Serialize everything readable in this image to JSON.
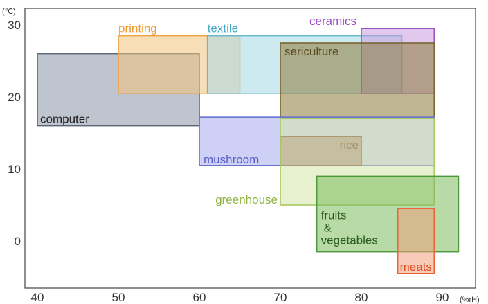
{
  "chart_data": {
    "type": "range-rectangles",
    "x_unit": "(%rH)",
    "y_unit": "(℃)",
    "xlim": [
      35,
      93
    ],
    "ylim": [
      -5,
      32
    ],
    "x_ticks": [
      "40",
      "50",
      "60",
      "70",
      "80",
      "90"
    ],
    "y_ticks": [
      "0",
      "10",
      "20",
      "30"
    ],
    "regions": [
      {
        "label": "computer",
        "x": [
          40,
          60
        ],
        "y": [
          16,
          26
        ],
        "stroke": "#5a6675",
        "fill": "#8a96a8",
        "text": "#222222"
      },
      {
        "label": "printing",
        "x": [
          50,
          65
        ],
        "y": [
          20.5,
          28.5
        ],
        "stroke": "#f2a044",
        "fill": "#f3c27c",
        "text": "#f29a30"
      },
      {
        "label": "textile",
        "x": [
          61,
          85
        ],
        "y": [
          20.5,
          28.5
        ],
        "stroke": "#66b8cc",
        "fill": "#a6d9e6",
        "text": "#46a8c4"
      },
      {
        "label": "ceramics",
        "x": [
          80,
          89
        ],
        "y": [
          20.5,
          29.5
        ],
        "stroke": "#9a50c0",
        "fill": "#c89ce0",
        "text": "#9a4ac0"
      },
      {
        "label": "sericulture",
        "x": [
          70,
          89
        ],
        "y": [
          17,
          27.5
        ],
        "stroke": "#7a6530",
        "fill": "#8c7a38",
        "text": "#5e4a1c"
      },
      {
        "label": "mushroom",
        "x": [
          60,
          89
        ],
        "y": [
          10.5,
          17.2
        ],
        "stroke": "#6870d0",
        "fill": "#a6acec",
        "text": "#5860c8"
      },
      {
        "label": "rice",
        "x": [
          70,
          80
        ],
        "y": [
          10.5,
          14.5
        ],
        "stroke": "#7a3a30",
        "fill": "#9c5a48",
        "text": "#6a2a20"
      },
      {
        "label": "greenhouse",
        "x": [
          70,
          89
        ],
        "y": [
          5,
          17
        ],
        "stroke": "#a8c860",
        "fill": "#d4e6a8",
        "text": "#90b440"
      },
      {
        "label": "fruits & vegetables",
        "x": [
          74.5,
          92
        ],
        "y": [
          -1.5,
          9
        ],
        "stroke": "#4a9a3c",
        "fill": "#7cbc5c",
        "text": "#2a5a1c"
      },
      {
        "label": "meats",
        "x": [
          84.5,
          89
        ],
        "y": [
          -4.5,
          4.5
        ],
        "stroke": "#e8623a",
        "fill": "#f0a07c",
        "text": "#e04a20"
      }
    ]
  }
}
